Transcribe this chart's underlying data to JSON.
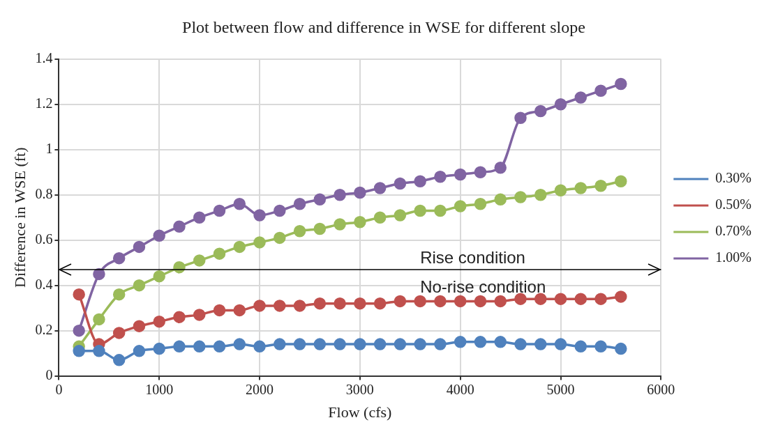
{
  "chart_data": {
    "type": "line",
    "title": "Plot between flow and difference in WSE for different slope",
    "xlabel": "Flow (cfs)",
    "ylabel": "Difference in WSE (ft)",
    "x": [
      200,
      400,
      600,
      800,
      1000,
      1200,
      1400,
      1600,
      1800,
      2000,
      2200,
      2400,
      2600,
      2800,
      3000,
      3200,
      3400,
      3600,
      3800,
      4000,
      4200,
      4400,
      4600,
      4800,
      5000,
      5200,
      5400,
      5600
    ],
    "series": [
      {
        "name": "0.30%",
        "color": "#4f81bd",
        "values": [
          0.11,
          0.11,
          0.07,
          0.11,
          0.12,
          0.13,
          0.13,
          0.13,
          0.14,
          0.13,
          0.14,
          0.14,
          0.14,
          0.14,
          0.14,
          0.14,
          0.14,
          0.14,
          0.14,
          0.15,
          0.15,
          0.15,
          0.14,
          0.14,
          0.14,
          0.13,
          0.13,
          0.12
        ]
      },
      {
        "name": "0.50%",
        "color": "#c0504d",
        "values": [
          0.36,
          0.14,
          0.19,
          0.22,
          0.24,
          0.26,
          0.27,
          0.29,
          0.29,
          0.31,
          0.31,
          0.31,
          0.32,
          0.32,
          0.32,
          0.32,
          0.33,
          0.33,
          0.33,
          0.33,
          0.33,
          0.33,
          0.34,
          0.34,
          0.34,
          0.34,
          0.34,
          0.35
        ]
      },
      {
        "name": "0.70%",
        "color": "#9bbb59",
        "values": [
          0.13,
          0.25,
          0.36,
          0.4,
          0.44,
          0.48,
          0.51,
          0.54,
          0.57,
          0.59,
          0.61,
          0.64,
          0.65,
          0.67,
          0.68,
          0.7,
          0.71,
          0.73,
          0.73,
          0.75,
          0.76,
          0.78,
          0.79,
          0.8,
          0.82,
          0.83,
          0.84,
          0.86
        ]
      },
      {
        "name": "1.00%",
        "color": "#8064a2",
        "values": [
          0.2,
          0.45,
          0.52,
          0.57,
          0.62,
          0.66,
          0.7,
          0.73,
          0.76,
          0.71,
          0.73,
          0.76,
          0.78,
          0.8,
          0.81,
          0.83,
          0.85,
          0.86,
          0.88,
          0.89,
          0.9,
          0.92,
          1.14,
          1.17,
          1.2,
          1.23,
          1.26,
          1.29
        ]
      }
    ],
    "xlim": [
      0,
      6000
    ],
    "xticks": [
      0,
      1000,
      2000,
      3000,
      4000,
      5000,
      6000
    ],
    "ylim": [
      0,
      1.4
    ],
    "yticks": [
      0,
      0.2,
      0.4,
      0.6,
      0.8,
      1,
      1.2,
      1.4
    ],
    "ref_lines": [
      {
        "axis": "y",
        "value": 0.47,
        "label": "Rise condition",
        "color": "#000000"
      }
    ],
    "annotations": [
      "No-rise condition"
    ],
    "grid": true,
    "legend": "right",
    "marker": "circle",
    "line_style": "solid"
  }
}
